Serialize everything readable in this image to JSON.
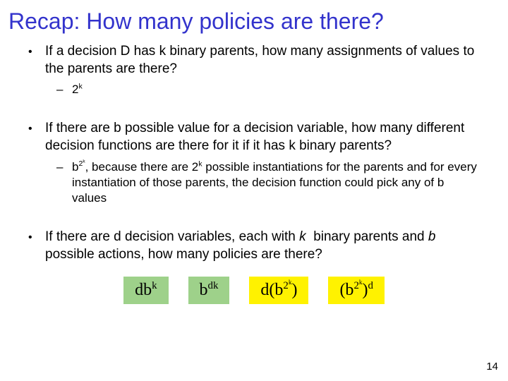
{
  "title": "Recap: How many policies are there?",
  "title_color": "#3333cc",
  "background": "#ffffff",
  "text_color": "#000000",
  "slide_number": "14",
  "bullets": {
    "q1": "If a decision D has k binary parents, how many assignments of values to the parents are there?",
    "a1_html": "2<sup>k</sup>",
    "q2": "If there are b possible value for a decision variable, how many different decision functions are there for it if it has k binary parents?",
    "a2_html": "b<sup>2<sup>k</sup></sup>, because there are 2<sup>k</sup> possible instantiations for the parents and for every instantiation of those parents, the decision function could pick any of b values",
    "q3_html": "If there are d decision variables, each with <i>k</i>&nbsp; binary parents and <i>b</i> possible actions, how many policies are there?"
  },
  "answers": [
    {
      "html": "db<sup>k</sup>",
      "bg": "#9ed18a"
    },
    {
      "html": "b<sup>dk</sup>",
      "bg": "#9ed18a"
    },
    {
      "html": "d(b<sup>2<sup>k</sup></sup>)",
      "bg": "#fff200"
    },
    {
      "html": "(b<sup>2<sup>k</sup></sup>)<sup>d</sup>",
      "bg": "#fff200"
    }
  ]
}
